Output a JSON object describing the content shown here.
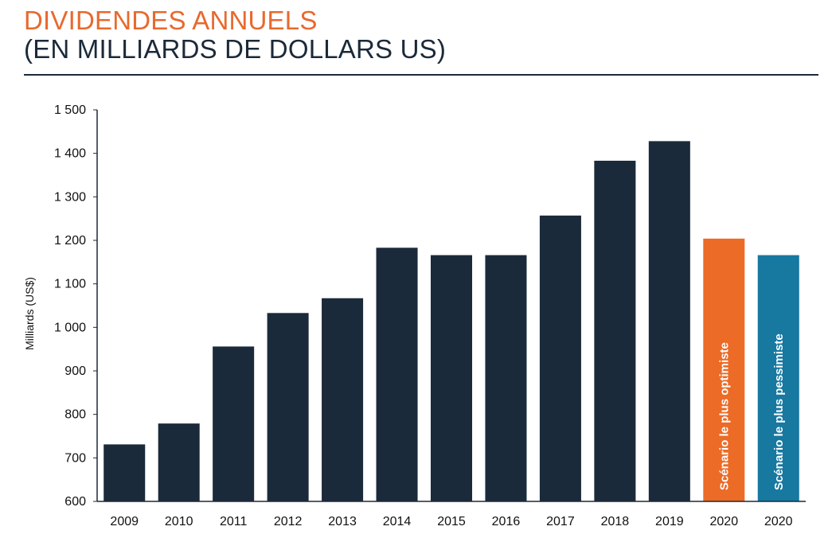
{
  "header": {
    "title": "DIVIDENDES ANNUELS",
    "subtitle": "(EN MILLIARDS DE DOLLARS US)"
  },
  "colors": {
    "title": "#e8692e",
    "bar": "#1b2a3a",
    "optimistic": "#ec6b26",
    "pessimistic": "#1778a0"
  },
  "chart_data": {
    "type": "bar",
    "title": "",
    "xlabel": "",
    "ylabel": "Milliards (US$)",
    "ylim": [
      600,
      1500
    ],
    "yticks": [
      {
        "value": 600,
        "label": "600"
      },
      {
        "value": 700,
        "label": "700"
      },
      {
        "value": 800,
        "label": "800"
      },
      {
        "value": 900,
        "label": "900"
      },
      {
        "value": 1000,
        "label": "1 000"
      },
      {
        "value": 1100,
        "label": "1 100"
      },
      {
        "value": 1200,
        "label": "1 200"
      },
      {
        "value": 1300,
        "label": "1 300"
      },
      {
        "value": 1400,
        "label": "1 400"
      },
      {
        "value": 1500,
        "label": "1 500"
      }
    ],
    "categories": [
      "2009",
      "2010",
      "2011",
      "2012",
      "2013",
      "2014",
      "2015",
      "2016",
      "2017",
      "2018",
      "2019",
      "2020",
      "2020"
    ],
    "values": [
      731,
      779,
      956,
      1033,
      1067,
      1183,
      1166,
      1166,
      1257,
      1383,
      1428,
      1204,
      1166
    ],
    "bar_styles": [
      "bar",
      "bar",
      "bar",
      "bar",
      "bar",
      "bar",
      "bar",
      "bar",
      "bar",
      "bar",
      "bar",
      "optimistic",
      "pessimistic"
    ],
    "bar_labels": [
      "",
      "",
      "",
      "",
      "",
      "",
      "",
      "",
      "",
      "",
      "",
      "Scénario le plus optimiste",
      "Scénario le plus pessimiste"
    ],
    "grid": false
  }
}
